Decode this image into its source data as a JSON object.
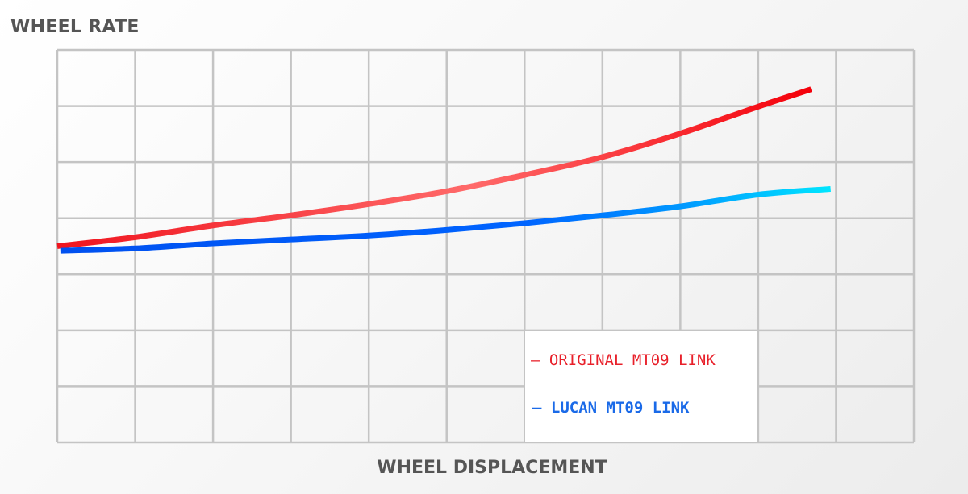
{
  "chart_data": {
    "type": "line",
    "title": "",
    "xlabel": "WHEEL DISPLACEMENT",
    "ylabel": "WHEEL RATE",
    "xlim": [
      0,
      11
    ],
    "ylim": [
      0,
      7
    ],
    "grid": true,
    "x_ticks_labeled": false,
    "y_ticks_labeled": false,
    "legend_position": "lower right",
    "series": [
      {
        "name": "ORIGINAL MT09 LINK",
        "color": "#f0141e",
        "x": [
          0,
          1,
          2,
          3,
          4,
          5,
          6,
          7,
          8,
          9,
          9.68
        ],
        "values": [
          3.5,
          3.66,
          3.87,
          4.05,
          4.25,
          4.48,
          4.77,
          5.09,
          5.51,
          5.99,
          6.3
        ]
      },
      {
        "name": "LUCAN MT09 LINK",
        "color": "#0050f0",
        "x": [
          0.05,
          1,
          2,
          3,
          4,
          5,
          6,
          7,
          8,
          9,
          9.93
        ],
        "values": [
          3.42,
          3.46,
          3.55,
          3.62,
          3.69,
          3.79,
          3.91,
          4.05,
          4.21,
          4.42,
          4.52
        ]
      }
    ]
  },
  "axes": {
    "x_label": "WHEEL DISPLACEMENT",
    "y_label": "WHEEL RATE"
  },
  "legend": {
    "items": [
      {
        "marker": "–",
        "label": "ORIGINAL MT09 LINK",
        "color": "#e8202a"
      },
      {
        "marker": "–",
        "label": "LUCAN MT09 LINK",
        "color": "#1a6ae8"
      }
    ]
  },
  "colors": {
    "grid": "#c4c4c4",
    "axis_text": "#555555",
    "original_start": "#f0141e",
    "original_mid": "#ff6a6a",
    "original_end": "#f4000a",
    "lucan_start": "#0050f0",
    "lucan_mid": "#0072ff",
    "lucan_end": "#00e6ff"
  }
}
